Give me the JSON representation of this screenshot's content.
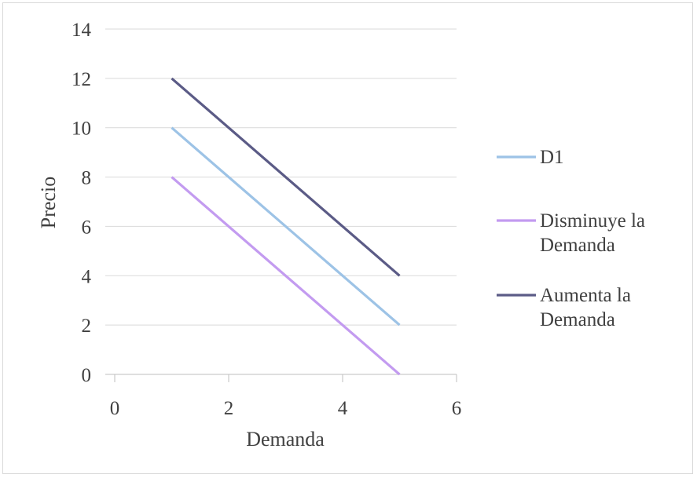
{
  "chart_data": {
    "type": "line",
    "title": "",
    "xlabel": "Demanda",
    "ylabel": "Precio",
    "xlim": [
      0,
      6
    ],
    "ylim": [
      0,
      14
    ],
    "xticks": [
      0,
      2,
      4,
      6
    ],
    "yticks": [
      0,
      2,
      4,
      6,
      8,
      10,
      12,
      14
    ],
    "grid": "horizontal",
    "legend_position": "right",
    "series": [
      {
        "name": "D1",
        "color": "#9dc3e6",
        "x": [
          1,
          5
        ],
        "y": [
          10,
          2
        ]
      },
      {
        "name": "Disminuye la Demanda",
        "name_lines": [
          "Disminuye la",
          "Demanda"
        ],
        "color": "#c39bf0",
        "x": [
          1,
          5
        ],
        "y": [
          8,
          0
        ]
      },
      {
        "name": "Aumenta la Demanda",
        "name_lines": [
          "Aumenta la",
          "Demanda"
        ],
        "color": "#5b5b86",
        "x": [
          1,
          5
        ],
        "y": [
          12,
          4
        ]
      }
    ]
  }
}
